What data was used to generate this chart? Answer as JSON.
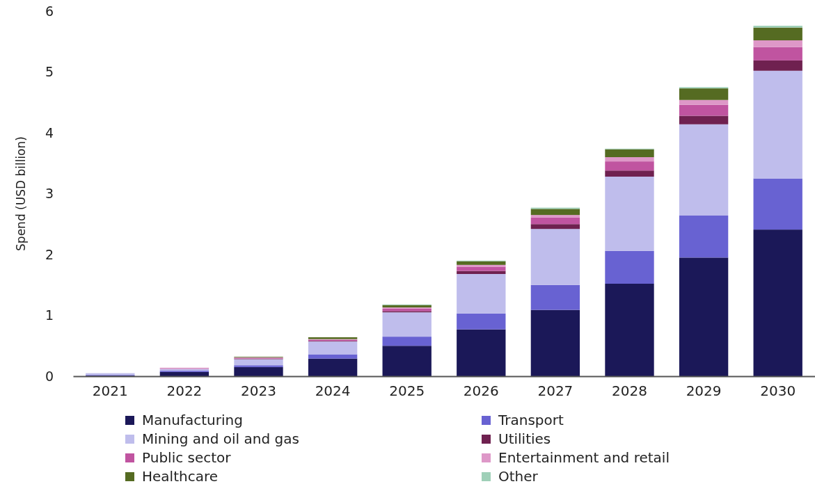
{
  "chart_data": {
    "type": "bar",
    "stacked": true,
    "ylabel": "Spend (USD billion)",
    "categories": [
      "2021",
      "2022",
      "2023",
      "2024",
      "2025",
      "2026",
      "2027",
      "2028",
      "2029",
      "2030"
    ],
    "ylim": [
      0,
      6
    ],
    "yticks": [
      0,
      1,
      2,
      3,
      4,
      5,
      6
    ],
    "grid": false,
    "legend": "bottom",
    "series": [
      {
        "name": "Manufacturing",
        "color": "#1b1858",
        "values": [
          0.01,
          0.07,
          0.15,
          0.29,
          0.5,
          0.77,
          1.09,
          1.52,
          1.95,
          2.41
        ]
      },
      {
        "name": "Transport",
        "color": "#6862d2",
        "values": [
          0.01,
          0.02,
          0.03,
          0.07,
          0.15,
          0.26,
          0.41,
          0.54,
          0.69,
          0.84
        ]
      },
      {
        "name": "Mining and oil and gas",
        "color": "#bfbdec",
        "values": [
          0.03,
          0.03,
          0.1,
          0.21,
          0.4,
          0.65,
          0.92,
          1.22,
          1.5,
          1.77
        ]
      },
      {
        "name": "Utilities",
        "color": "#6f2150",
        "values": [
          0,
          0,
          0.01,
          0.01,
          0.02,
          0.05,
          0.08,
          0.1,
          0.14,
          0.17
        ]
      },
      {
        "name": "Public sector",
        "color": "#c054a0",
        "values": [
          0,
          0.01,
          0.01,
          0.02,
          0.04,
          0.07,
          0.11,
          0.15,
          0.18,
          0.22
        ]
      },
      {
        "name": "Entertainment and retail",
        "color": "#de98c8",
        "values": [
          0,
          0.01,
          0.01,
          0.01,
          0.02,
          0.03,
          0.04,
          0.07,
          0.08,
          0.11
        ]
      },
      {
        "name": "Healthcare",
        "color": "#556b22",
        "values": [
          0,
          0,
          0.01,
          0.03,
          0.04,
          0.06,
          0.1,
          0.13,
          0.19,
          0.21
        ]
      },
      {
        "name": "Other",
        "color": "#9fd0b8",
        "values": [
          0,
          0,
          0,
          0,
          0.01,
          0.01,
          0.02,
          0.01,
          0.02,
          0.03
        ]
      }
    ]
  }
}
